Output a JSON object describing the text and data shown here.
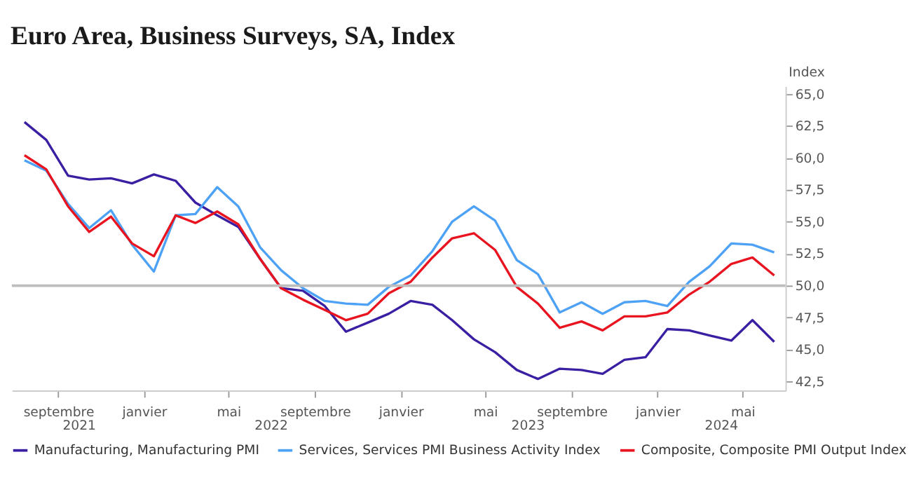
{
  "chart_data": {
    "type": "line",
    "title": "Euro Area, Business Surveys, SA, Index",
    "ylabel": "Index",
    "x": [
      "2021-07-15",
      "2021-08-15",
      "2021-09-15",
      "2021-10-15",
      "2021-11-15",
      "2021-12-15",
      "2022-01-15",
      "2022-02-15",
      "2022-03-15",
      "2022-04-15",
      "2022-05-15",
      "2022-06-15",
      "2022-07-15",
      "2022-08-15",
      "2022-09-15",
      "2022-10-15",
      "2022-11-15",
      "2022-12-15",
      "2023-01-15",
      "2023-02-15",
      "2023-03-15",
      "2023-04-15",
      "2023-05-15",
      "2023-06-15",
      "2023-07-15",
      "2023-08-15",
      "2023-09-15",
      "2023-10-15",
      "2023-11-15",
      "2023-12-15",
      "2024-01-15",
      "2024-02-15",
      "2024-03-15",
      "2024-04-15",
      "2024-05-15",
      "2024-06-15"
    ],
    "series": [
      {
        "name": "Manufacturing, Manufacturing PMI",
        "color": "#3b1fa3",
        "values": [
          62.8,
          61.4,
          58.6,
          58.3,
          58.4,
          58.0,
          58.7,
          58.2,
          56.5,
          55.5,
          54.6,
          52.1,
          49.8,
          49.6,
          48.4,
          46.4,
          47.1,
          47.8,
          48.8,
          48.5,
          47.3,
          45.8,
          44.8,
          43.4,
          42.7,
          43.5,
          43.4,
          43.1,
          44.2,
          44.4,
          46.6,
          46.5,
          46.1,
          45.7,
          47.3,
          45.6
        ]
      },
      {
        "name": "Services, Services PMI Business Activity Index",
        "color": "#4ea2f5",
        "values": [
          59.8,
          59.0,
          56.4,
          54.5,
          55.9,
          53.2,
          51.1,
          55.5,
          55.6,
          57.7,
          56.2,
          53.0,
          51.2,
          49.8,
          48.8,
          48.6,
          48.5,
          49.9,
          50.8,
          52.7,
          55.0,
          56.2,
          55.1,
          52.0,
          50.9,
          47.9,
          48.7,
          47.8,
          48.7,
          48.8,
          48.4,
          50.3,
          51.5,
          53.3,
          53.2,
          52.6
        ]
      },
      {
        "name": "Composite, Composite PMI Output Index",
        "color": "#e8141f",
        "values": [
          60.2,
          59.1,
          56.2,
          54.2,
          55.4,
          53.3,
          52.3,
          55.5,
          54.9,
          55.8,
          54.8,
          52.1,
          49.8,
          48.9,
          48.1,
          47.3,
          47.8,
          49.4,
          50.3,
          52.2,
          53.7,
          54.1,
          52.8,
          49.9,
          48.6,
          46.7,
          47.2,
          46.5,
          47.6,
          47.6,
          47.9,
          49.3,
          50.3,
          51.7,
          52.2,
          50.8
        ]
      }
    ],
    "xlim": [
      "2021-06-27",
      "2024-07-01"
    ],
    "xticks": [
      {
        "value": "2021-09-01",
        "label": "septembre"
      },
      {
        "value": "2022-01-01",
        "label": "janvier"
      },
      {
        "value": "2022-05-01",
        "label": "mai"
      },
      {
        "value": "2022-09-01",
        "label": "septembre"
      },
      {
        "value": "2023-01-01",
        "label": "janvier"
      },
      {
        "value": "2023-05-01",
        "label": "mai"
      },
      {
        "value": "2023-09-01",
        "label": "septembre"
      },
      {
        "value": "2024-01-01",
        "label": "janvier"
      },
      {
        "value": "2024-05-01",
        "label": "mai"
      }
    ],
    "x2lim": [
      "2021-06-27",
      "2024-07-01"
    ],
    "x2ticks": [
      {
        "value": "2021-10-01",
        "label": "2021"
      },
      {
        "value": "2022-07-01",
        "label": "2022"
      },
      {
        "value": "2023-07-01",
        "label": "2023"
      },
      {
        "value": "2024-04-01",
        "label": "2024"
      }
    ],
    "ylim": [
      41.8,
      65.6
    ],
    "yticks": [
      {
        "value": 42.5,
        "label": "42,5"
      },
      {
        "value": 45,
        "label": "45,0"
      },
      {
        "value": 47.5,
        "label": "47,5"
      },
      {
        "value": 50,
        "label": "50,0"
      },
      {
        "value": 52.5,
        "label": "52,5"
      },
      {
        "value": 55,
        "label": "55,0"
      },
      {
        "value": 57.5,
        "label": "57,5"
      },
      {
        "value": 60,
        "label": "60,0"
      },
      {
        "value": 62.5,
        "label": "62,5"
      },
      {
        "value": 65,
        "label": "65,0"
      }
    ],
    "ref_lines": [
      {
        "axis": "y",
        "value": 50,
        "label": null,
        "color": "#bdbdbd"
      }
    ],
    "grid": false,
    "legend": "bottom",
    "marker": "none",
    "line_style": "solid"
  }
}
